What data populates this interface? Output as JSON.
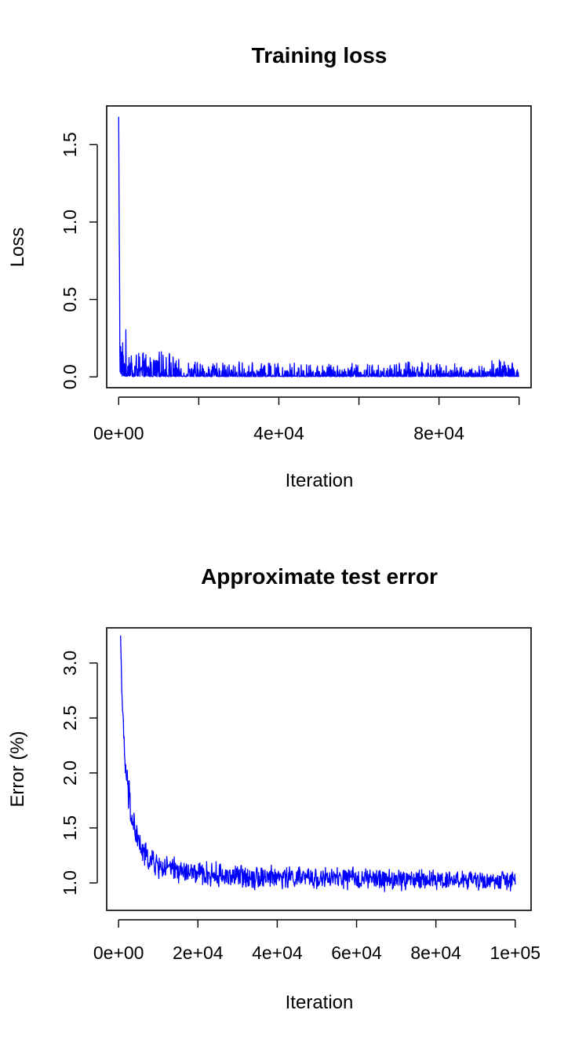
{
  "chart_data": [
    {
      "type": "line",
      "title": "Training loss",
      "xlabel": "Iteration",
      "ylabel": "Loss",
      "xlim": [
        -3000,
        103000
      ],
      "ylim": [
        -0.07,
        1.75
      ],
      "x_ticks": [
        0,
        40000,
        80000
      ],
      "x_tick_labels": [
        "0e+00",
        "4e+04",
        "8e+04"
      ],
      "x_tick_marks": [
        0,
        20000,
        40000,
        60000,
        80000,
        100000
      ],
      "y_ticks": [
        0.0,
        0.5,
        1.0,
        1.5
      ],
      "y_tick_labels": [
        "0.0",
        "0.5",
        "1.0",
        "1.5"
      ],
      "grid": false,
      "series": [
        {
          "color": "#0000ff",
          "x": [
            0,
            100,
            200,
            400,
            600,
            800,
            1000,
            1300,
            1600,
            2000,
            2500,
            3000,
            3500,
            4000,
            5000,
            6000,
            7000,
            8000,
            10000,
            12000,
            14000,
            17000,
            20000,
            25000,
            30000,
            35000,
            40000,
            45000,
            50000,
            55000,
            60000,
            65000,
            70000,
            75000,
            80000,
            85000,
            90000,
            95000,
            100000
          ],
          "envelope_upper": [
            1.68,
            1.05,
            0.7,
            0.47,
            0.35,
            0.3,
            0.28,
            0.26,
            0.24,
            0.38,
            0.25,
            0.22,
            0.2,
            0.18,
            0.17,
            0.16,
            0.15,
            0.14,
            0.16,
            0.17,
            0.12,
            0.1,
            0.1,
            0.09,
            0.1,
            0.09,
            0.1,
            0.09,
            0.08,
            0.09,
            0.09,
            0.08,
            0.09,
            0.12,
            0.08,
            0.09,
            0.08,
            0.12,
            0.08
          ],
          "envelope_lower": [
            0.5,
            0.2,
            0.06,
            0.02,
            0.01,
            0.005,
            0.003,
            0.002,
            0.002,
            0.001,
            0.001,
            0.001,
            0.001,
            0.001,
            0.001,
            0.001,
            0.001,
            0.001,
            0.001,
            0.001,
            0.001,
            0.001,
            0.001,
            0.001,
            0.001,
            0.001,
            0.001,
            0.001,
            0.001,
            0.001,
            0.001,
            0.001,
            0.001,
            0.001,
            0.001,
            0.001,
            0.001,
            0.001,
            0.001
          ]
        }
      ]
    },
    {
      "type": "line",
      "title": "Approximate test error",
      "xlabel": "Iteration",
      "ylabel": "Error (%)",
      "xlim": [
        -3000,
        104000
      ],
      "ylim": [
        0.75,
        3.32
      ],
      "x_ticks": [
        0,
        20000,
        40000,
        60000,
        80000,
        100000
      ],
      "x_tick_labels": [
        "0e+00",
        "2e+04",
        "4e+04",
        "6e+04",
        "8e+04",
        "1e+05"
      ],
      "y_ticks": [
        1.0,
        1.5,
        2.0,
        2.5,
        3.0
      ],
      "y_tick_labels": [
        "1.0",
        "1.5",
        "2.0",
        "2.5",
        "3.0"
      ],
      "grid": false,
      "series": [
        {
          "color": "#0000ff",
          "x": [
            500,
            700,
            1000,
            1300,
            1600,
            2000,
            2500,
            3000,
            3500,
            4000,
            4500,
            5000,
            5500,
            6000,
            7000,
            8000,
            9000,
            10000,
            12000,
            14000,
            16000,
            18000,
            20000,
            25000,
            30000,
            35000,
            40000,
            45000,
            50000,
            55000,
            60000,
            65000,
            70000,
            75000,
            80000,
            85000,
            90000,
            95000,
            100000
          ],
          "y": [
            3.25,
            2.95,
            2.55,
            2.3,
            2.1,
            1.95,
            1.8,
            1.68,
            1.58,
            1.5,
            1.43,
            1.38,
            1.33,
            1.28,
            1.24,
            1.2,
            1.18,
            1.15,
            1.13,
            1.12,
            1.1,
            1.09,
            1.08,
            1.07,
            1.06,
            1.06,
            1.05,
            1.05,
            1.04,
            1.04,
            1.04,
            1.03,
            1.03,
            1.03,
            1.03,
            1.03,
            1.02,
            1.02,
            1.02
          ],
          "noise_amplitude": [
            0.0,
            0.05,
            0.08,
            0.1,
            0.1,
            0.12,
            0.14,
            0.15,
            0.15,
            0.14,
            0.13,
            0.12,
            0.11,
            0.1,
            0.09,
            0.09,
            0.09,
            0.09,
            0.09,
            0.09,
            0.09,
            0.09,
            0.09,
            0.09,
            0.09,
            0.09,
            0.08,
            0.08,
            0.08,
            0.08,
            0.08,
            0.08,
            0.08,
            0.08,
            0.07,
            0.07,
            0.07,
            0.07,
            0.07
          ]
        }
      ]
    }
  ]
}
